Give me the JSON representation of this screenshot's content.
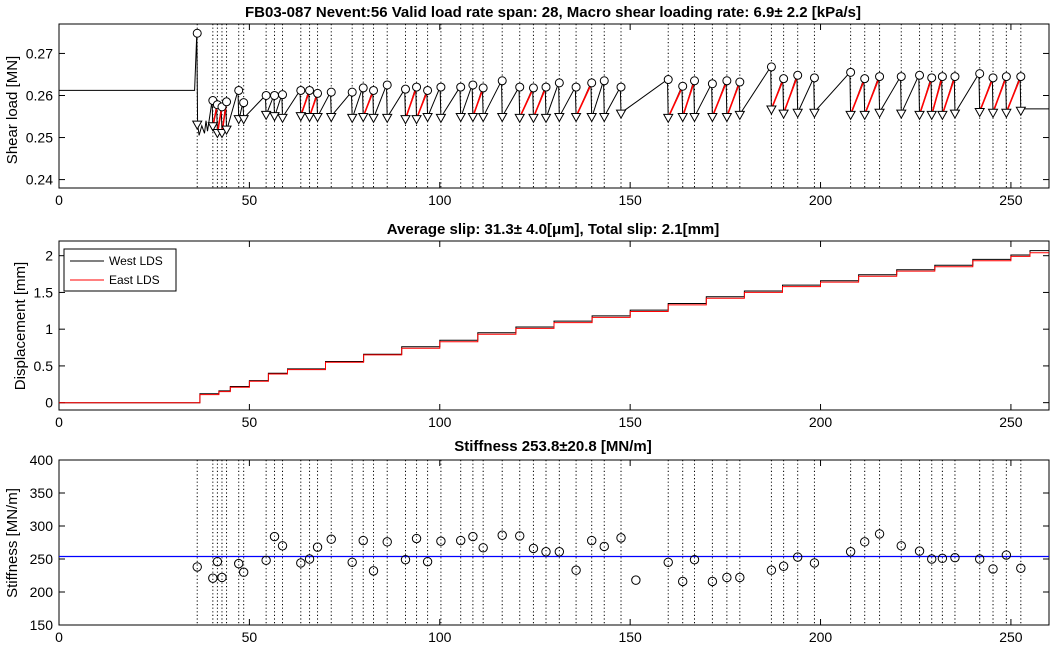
{
  "chart_data": [
    {
      "type": "line",
      "title": "FB03-087 Nevent:56 Valid load rate span: 28, Macro shear loading rate:  6.9± 2.2 [kPa/s]",
      "xlabel": "",
      "ylabel": "Shear load [MN]",
      "xlim": [
        0,
        260
      ],
      "ylim": [
        0.238,
        0.277
      ],
      "xticks": [
        0,
        50,
        100,
        150,
        200,
        250
      ],
      "yticks": [
        0.24,
        0.25,
        0.26,
        0.27
      ],
      "ytick_labels": [
        "0.24",
        "0.25",
        "0.26",
        "0.27"
      ],
      "grid": false,
      "event_lines": [
        36.3,
        40.4,
        41.6,
        42.8,
        44.0,
        47.2,
        48.5,
        54.4,
        56.6,
        58.7,
        63.5,
        65.8,
        67.9,
        71.5,
        77.0,
        79.9,
        82.6,
        86.2,
        91.0,
        93.9,
        96.8,
        100.3,
        105.5,
        108.7,
        111.4,
        116.4,
        121.0,
        124.6,
        127.9,
        131.4,
        135.8,
        139.9,
        143.2,
        147.6,
        160.0,
        163.8,
        166.9,
        171.6,
        175.4,
        178.8,
        187.1,
        190.3,
        194.0,
        198.4,
        207.9,
        211.6,
        215.5,
        221.2,
        226.0,
        229.2,
        232.0,
        235.3,
        241.8,
        245.3,
        248.8,
        252.6
      ],
      "series": [
        {
          "name": "shear load",
          "color": "#000000",
          "x": [
            0,
            35.5,
            35.6,
            36.2,
            36.4,
            36.8,
            37.5,
            38.2,
            38.6,
            39.0,
            40.2,
            40.4,
            40.6,
            41.4,
            41.6,
            41.8,
            42.6,
            42.8,
            43.0,
            43.8,
            44.0,
            44.2,
            47.0,
            47.2,
            47.4,
            48.3,
            48.5,
            48.7,
            54.2,
            54.4,
            54.6,
            56.4,
            56.6,
            56.8,
            58.5,
            58.7,
            58.9,
            63.3,
            63.5,
            63.7,
            65.6,
            65.8,
            66.0,
            67.7,
            67.9,
            68.1,
            71.3,
            71.5,
            71.7,
            76.8,
            77.0,
            77.2,
            79.7,
            79.9,
            80.1,
            82.4,
            82.6,
            82.8,
            86.0,
            86.2,
            86.4,
            90.8,
            91.0,
            91.2,
            93.7,
            93.9,
            94.1,
            96.6,
            96.8,
            97.0,
            100.1,
            100.3,
            100.5,
            105.3,
            105.5,
            105.7,
            108.5,
            108.7,
            108.9,
            111.2,
            111.4,
            111.6,
            116.2,
            116.4,
            116.6,
            120.8,
            121.0,
            121.2,
            124.4,
            124.6,
            124.8,
            127.7,
            127.9,
            128.1,
            131.2,
            131.4,
            131.6,
            135.6,
            135.8,
            136.0,
            139.7,
            139.9,
            140.1,
            143.0,
            143.2,
            143.4,
            147.4,
            147.6,
            147.8,
            159.8,
            160.0,
            160.2,
            163.6,
            163.8,
            164.0,
            166.7,
            166.9,
            167.1,
            171.4,
            171.6,
            171.8,
            175.2,
            175.4,
            175.6,
            178.6,
            178.8,
            179.0,
            186.9,
            187.1,
            187.3,
            190.1,
            190.3,
            190.5,
            193.8,
            194.0,
            194.2,
            198.2,
            198.4,
            198.6,
            207.7,
            207.9,
            208.1,
            211.4,
            211.6,
            211.8,
            215.3,
            215.5,
            215.7,
            221.0,
            221.2,
            221.4,
            225.8,
            226.0,
            226.2,
            229.0,
            229.2,
            229.4,
            231.8,
            232.0,
            232.2,
            235.1,
            235.3,
            235.5,
            241.6,
            241.8,
            242.0,
            245.1,
            245.3,
            245.5,
            248.6,
            248.8,
            249.0,
            252.4,
            252.6,
            252.8,
            260
          ],
          "y": [
            0.2612,
            0.2612,
            0.2612,
            0.2748,
            0.2532,
            0.2505,
            0.2528,
            0.251,
            0.254,
            0.2515,
            0.2588,
            0.2528,
            0.253,
            0.2578,
            0.2512,
            0.2515,
            0.2573,
            0.2512,
            0.2515,
            0.2585,
            0.252,
            0.2522,
            0.2612,
            0.2545,
            0.2548,
            0.2583,
            0.2545,
            0.2548,
            0.26,
            0.2555,
            0.2558,
            0.26,
            0.2552,
            0.2555,
            0.2602,
            0.2548,
            0.2551,
            0.2612,
            0.2552,
            0.2555,
            0.2612,
            0.255,
            0.2553,
            0.2605,
            0.255,
            0.2553,
            0.2608,
            0.255,
            0.2553,
            0.2608,
            0.2548,
            0.2551,
            0.2618,
            0.255,
            0.2553,
            0.2612,
            0.2548,
            0.2551,
            0.2625,
            0.2548,
            0.2551,
            0.2615,
            0.2545,
            0.2548,
            0.262,
            0.2545,
            0.2548,
            0.2612,
            0.255,
            0.2553,
            0.262,
            0.2548,
            0.2551,
            0.262,
            0.255,
            0.2553,
            0.2625,
            0.255,
            0.2553,
            0.2618,
            0.255,
            0.2553,
            0.2635,
            0.255,
            0.2553,
            0.262,
            0.2548,
            0.2551,
            0.2618,
            0.2548,
            0.2551,
            0.262,
            0.2548,
            0.2551,
            0.263,
            0.255,
            0.2553,
            0.262,
            0.255,
            0.2553,
            0.263,
            0.255,
            0.2553,
            0.2635,
            0.255,
            0.2553,
            0.262,
            0.2558,
            0.256,
            0.2638,
            0.2548,
            0.2551,
            0.2622,
            0.255,
            0.2553,
            0.2635,
            0.255,
            0.2553,
            0.2628,
            0.255,
            0.2553,
            0.2635,
            0.255,
            0.2553,
            0.2632,
            0.2555,
            0.2558,
            0.2668,
            0.2568,
            0.2571,
            0.264,
            0.2558,
            0.2561,
            0.2648,
            0.256,
            0.2563,
            0.2642,
            0.256,
            0.2563,
            0.2655,
            0.2555,
            0.2558,
            0.264,
            0.2555,
            0.2558,
            0.2645,
            0.256,
            0.2563,
            0.2645,
            0.2558,
            0.2561,
            0.2648,
            0.2555,
            0.2558,
            0.2642,
            0.2555,
            0.2558,
            0.2645,
            0.2555,
            0.2558,
            0.2645,
            0.2558,
            0.2561,
            0.2652,
            0.2562,
            0.2565,
            0.2642,
            0.256,
            0.2563,
            0.2645,
            0.256,
            0.2563,
            0.2645,
            0.2565,
            0.2568,
            0.2568
          ]
        }
      ],
      "peaks_y": [
        0.2748,
        0.2588,
        0.2578,
        0.2573,
        0.2585,
        0.2612,
        0.2583,
        0.26,
        0.26,
        0.2602,
        0.2612,
        0.2612,
        0.2605,
        0.2608,
        0.2608,
        0.2618,
        0.2612,
        0.2625,
        0.2615,
        0.262,
        0.2612,
        0.262,
        0.262,
        0.2625,
        0.2618,
        0.2635,
        0.262,
        0.2618,
        0.262,
        0.263,
        0.262,
        0.263,
        0.2635,
        0.262,
        0.2638,
        0.2622,
        0.2635,
        0.2628,
        0.2635,
        0.2632,
        0.2668,
        0.264,
        0.2648,
        0.2642,
        0.2655,
        0.264,
        0.2645,
        0.2645,
        0.2648,
        0.2642,
        0.2645,
        0.2645,
        0.2652,
        0.2642,
        0.2645,
        0.2645
      ],
      "troughs_y": [
        0.2532,
        0.2528,
        0.2512,
        0.2512,
        0.252,
        0.2545,
        0.2545,
        0.2555,
        0.2552,
        0.2548,
        0.2552,
        0.255,
        0.255,
        0.255,
        0.2548,
        0.255,
        0.2548,
        0.2548,
        0.2545,
        0.2545,
        0.255,
        0.2548,
        0.255,
        0.255,
        0.255,
        0.255,
        0.2548,
        0.2548,
        0.2548,
        0.255,
        0.255,
        0.255,
        0.255,
        0.2558,
        0.2548,
        0.255,
        0.255,
        0.255,
        0.255,
        0.2555,
        0.2568,
        0.2558,
        0.256,
        0.256,
        0.2555,
        0.2555,
        0.256,
        0.2558,
        0.2555,
        0.2555,
        0.2555,
        0.2558,
        0.2562,
        0.256,
        0.256,
        0.2565
      ],
      "red_links": [
        [
          40.4,
          41.6
        ],
        [
          41.6,
          42.8
        ],
        [
          42.8,
          44.0
        ],
        [
          63.5,
          65.8
        ],
        [
          65.8,
          67.9
        ],
        [
          79.9,
          82.6
        ],
        [
          91.0,
          93.9
        ],
        [
          93.9,
          96.8
        ],
        [
          108.7,
          111.4
        ],
        [
          121.0,
          124.6
        ],
        [
          124.6,
          127.9
        ],
        [
          135.8,
          139.9
        ],
        [
          160.0,
          163.8
        ],
        [
          163.8,
          166.9
        ],
        [
          171.6,
          175.4
        ],
        [
          175.4,
          178.8
        ],
        [
          187.1,
          190.3
        ],
        [
          190.3,
          194.0
        ],
        [
          207.9,
          211.6
        ],
        [
          211.6,
          215.5
        ],
        [
          226.0,
          229.2
        ],
        [
          229.2,
          232.0
        ],
        [
          232.0,
          235.3
        ],
        [
          241.8,
          245.3
        ],
        [
          245.3,
          248.8
        ],
        [
          248.8,
          252.6
        ]
      ]
    },
    {
      "type": "line",
      "title": "Average slip: 31.3± 4.0[μm], Total slip:  2.1[mm]",
      "xlabel": "",
      "ylabel": "Displacement [mm]",
      "xlim": [
        0,
        260
      ],
      "ylim": [
        -0.1,
        2.2
      ],
      "xticks": [
        0,
        50,
        100,
        150,
        200,
        250
      ],
      "yticks": [
        0,
        0.5,
        1,
        1.5,
        2
      ],
      "ytick_labels": [
        "0",
        "0.5",
        "1",
        "1.5",
        "2"
      ],
      "grid": false,
      "legend": "top-left",
      "series": [
        {
          "name": "West LDS",
          "color": "#000000",
          "x": [
            0,
            36,
            37,
            42,
            45,
            50,
            55,
            60,
            70,
            80,
            90,
            100,
            110,
            120,
            130,
            140,
            150,
            160,
            170,
            180,
            190,
            200,
            210,
            220,
            230,
            240,
            250,
            255,
            260
          ],
          "y": [
            0,
            0,
            0.12,
            0.16,
            0.22,
            0.3,
            0.4,
            0.46,
            0.56,
            0.66,
            0.76,
            0.85,
            0.95,
            1.03,
            1.11,
            1.18,
            1.26,
            1.35,
            1.44,
            1.52,
            1.6,
            1.66,
            1.74,
            1.81,
            1.87,
            1.95,
            2.01,
            2.07,
            2.07
          ]
        },
        {
          "name": "East LDS",
          "color": "#ff0000",
          "x": [
            0,
            36,
            37,
            42,
            45,
            50,
            55,
            60,
            70,
            80,
            90,
            100,
            110,
            120,
            130,
            140,
            150,
            160,
            170,
            180,
            190,
            200,
            210,
            220,
            230,
            240,
            250,
            255,
            260
          ],
          "y": [
            0,
            0,
            0.11,
            0.15,
            0.21,
            0.29,
            0.39,
            0.45,
            0.55,
            0.65,
            0.74,
            0.83,
            0.93,
            1.01,
            1.09,
            1.16,
            1.24,
            1.33,
            1.42,
            1.5,
            1.58,
            1.64,
            1.72,
            1.79,
            1.85,
            1.93,
            1.99,
            2.04,
            2.04
          ]
        }
      ]
    },
    {
      "type": "scatter",
      "title": "Stiffness 253.8±20.8 [MN/m]",
      "xlabel": "",
      "ylabel": "Stiffness [MN/m]",
      "xlim": [
        0,
        260
      ],
      "ylim": [
        150,
        400
      ],
      "xticks": [
        0,
        50,
        100,
        150,
        200,
        250
      ],
      "yticks": [
        150,
        200,
        250,
        300,
        350,
        400
      ],
      "ytick_labels": [
        "150",
        "200",
        "250",
        "300",
        "350",
        "400"
      ],
      "grid": false,
      "mean_line": {
        "y": 253.8,
        "color": "#0000ff"
      },
      "series": [
        {
          "name": "stiffness",
          "color": "#000000",
          "x": [
            36.3,
            40.4,
            41.6,
            42.8,
            47.2,
            48.5,
            54.4,
            56.6,
            58.7,
            63.5,
            65.8,
            67.9,
            71.5,
            77.0,
            79.9,
            82.6,
            86.2,
            91.0,
            93.9,
            96.8,
            100.3,
            105.5,
            108.7,
            111.4,
            116.4,
            121.0,
            124.6,
            127.9,
            131.4,
            135.8,
            139.9,
            143.2,
            147.6,
            151.5,
            160.0,
            163.8,
            166.9,
            171.6,
            175.4,
            178.8,
            187.1,
            190.3,
            194.0,
            198.4,
            207.9,
            211.6,
            215.5,
            221.2,
            226.0,
            229.2,
            232.0,
            235.3,
            241.8,
            245.3,
            248.8,
            252.6
          ],
          "y": [
            238,
            221,
            246,
            222,
            243,
            230,
            248,
            284,
            270,
            244,
            250,
            268,
            280,
            245,
            278,
            232,
            276,
            249,
            281,
            246,
            277,
            278,
            284,
            267,
            286,
            285,
            266,
            261,
            261,
            233,
            278,
            269,
            282,
            218,
            245,
            216,
            249,
            216,
            222,
            222,
            233,
            239,
            253,
            244,
            261,
            276,
            288,
            270,
            262,
            250,
            251,
            252,
            250,
            235,
            256,
            236
          ]
        }
      ]
    }
  ],
  "legend": {
    "west_label": "West LDS",
    "east_label": "East LDS"
  }
}
